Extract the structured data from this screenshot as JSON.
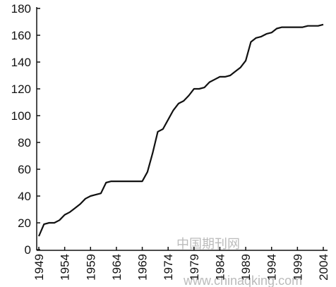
{
  "chart_data": {
    "type": "line",
    "x": [
      1949,
      1950,
      1951,
      1952,
      1953,
      1954,
      1955,
      1956,
      1957,
      1958,
      1959,
      1960,
      1961,
      1962,
      1963,
      1964,
      1965,
      1966,
      1967,
      1968,
      1969,
      1970,
      1971,
      1972,
      1973,
      1974,
      1975,
      1976,
      1977,
      1978,
      1979,
      1980,
      1981,
      1982,
      1983,
      1984,
      1985,
      1986,
      1987,
      1988,
      1989,
      1990,
      1991,
      1992,
      1993,
      1994,
      1995,
      1996,
      1997,
      1998,
      1999,
      2000,
      2001,
      2002,
      2003,
      2004
    ],
    "series": [
      {
        "color": "#111111",
        "values": [
          10,
          19,
          20,
          20,
          22,
          26,
          28,
          31,
          34,
          38,
          40,
          41,
          42,
          50,
          51,
          51,
          51,
          51,
          51,
          51,
          51,
          58,
          72,
          88,
          90,
          97,
          104,
          109,
          111,
          115,
          120,
          120,
          121,
          125,
          127,
          129,
          129,
          130,
          133,
          136,
          141,
          155,
          158,
          159,
          161,
          162,
          165,
          166,
          166,
          166,
          166,
          166,
          167,
          167,
          167,
          168
        ]
      }
    ],
    "xlim": [
      1949,
      2004
    ],
    "xticks": [
      1949,
      1954,
      1959,
      1964,
      1969,
      1974,
      1979,
      1984,
      1989,
      1994,
      1999,
      2004
    ],
    "ylim": [
      0,
      180
    ],
    "yticks": [
      0,
      20,
      40,
      60,
      80,
      100,
      120,
      140,
      160,
      180
    ],
    "watermark": [
      "中国期刊网",
      "www.chinaqking.com"
    ]
  }
}
